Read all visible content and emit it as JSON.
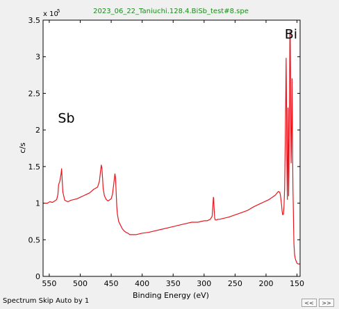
{
  "chart_data": {
    "type": "line",
    "title": "2023_06_22_Taniuchi.128.4.BiSb_test#8.spe",
    "xlabel": "Binding Energy (eV)",
    "ylabel": "c/s",
    "y_multiplier_base": "x 10",
    "y_multiplier_exp": "5",
    "xlim": [
      560,
      145
    ],
    "ylim": [
      0,
      3.5
    ],
    "x_reversed": true,
    "x_ticks": [
      550,
      500,
      450,
      400,
      350,
      300,
      250,
      200,
      150
    ],
    "y_ticks": [
      0,
      0.5,
      1,
      1.5,
      2,
      2.5,
      3,
      3.5
    ],
    "y_tick_labels": [
      "0",
      "0.5",
      "1",
      "1.5",
      "2",
      "2.5",
      "3",
      "3.5"
    ],
    "series": [
      {
        "color": "#e8141c",
        "x": [
          557,
          553,
          549,
          545,
          541,
          538,
          536,
          535,
          533,
          531,
          530,
          529,
          528,
          525,
          520,
          515,
          510,
          505,
          500,
          495,
          490,
          485,
          478,
          472,
          469,
          467,
          466,
          465,
          464,
          463,
          461,
          458,
          455,
          450,
          448,
          446,
          444,
          443,
          442,
          441,
          440,
          438,
          435,
          432,
          429,
          426,
          423,
          420,
          415,
          410,
          400,
          390,
          380,
          370,
          360,
          350,
          340,
          330,
          320,
          310,
          300,
          295,
          290,
          287,
          286,
          285,
          284.5,
          284,
          283,
          282,
          281,
          280,
          278,
          275,
          270,
          260,
          250,
          240,
          230,
          220,
          210,
          200,
          195,
          190,
          185,
          182,
          180,
          178,
          177,
          176,
          175,
          174,
          173,
          172,
          171,
          170,
          169,
          168,
          167.5,
          167,
          166.5,
          166,
          165.5,
          165,
          164.5,
          164,
          163.5,
          163,
          162.5,
          162,
          161.5,
          161,
          160.5,
          160,
          159.5,
          159,
          158.5,
          158,
          157.5,
          157,
          156.5,
          156,
          155.5,
          155,
          154,
          153,
          152,
          151,
          150,
          148,
          146,
          145
        ],
        "y": [
          1.0,
          1.0,
          1.02,
          1.01,
          1.03,
          1.05,
          1.12,
          1.25,
          1.3,
          1.4,
          1.47,
          1.3,
          1.15,
          1.04,
          1.02,
          1.04,
          1.05,
          1.06,
          1.08,
          1.1,
          1.12,
          1.14,
          1.19,
          1.22,
          1.3,
          1.45,
          1.52,
          1.48,
          1.35,
          1.2,
          1.1,
          1.05,
          1.03,
          1.06,
          1.12,
          1.25,
          1.4,
          1.35,
          1.15,
          0.95,
          0.85,
          0.75,
          0.7,
          0.65,
          0.62,
          0.6,
          0.59,
          0.57,
          0.57,
          0.57,
          0.59,
          0.6,
          0.62,
          0.64,
          0.66,
          0.68,
          0.7,
          0.72,
          0.74,
          0.74,
          0.76,
          0.76,
          0.78,
          0.82,
          0.95,
          1.08,
          1.07,
          0.95,
          0.8,
          0.77,
          0.77,
          0.77,
          0.78,
          0.78,
          0.79,
          0.81,
          0.84,
          0.87,
          0.9,
          0.95,
          0.99,
          1.03,
          1.05,
          1.08,
          1.11,
          1.14,
          1.16,
          1.15,
          1.12,
          1.05,
          0.98,
          0.89,
          0.84,
          0.85,
          0.95,
          1.2,
          1.8,
          2.6,
          2.98,
          2.4,
          1.7,
          1.3,
          1.05,
          1.7,
          2.3,
          1.7,
          1.1,
          1.45,
          2.0,
          2.5,
          3.3,
          3.35,
          2.8,
          2.0,
          1.55,
          1.75,
          2.2,
          2.7,
          2.2,
          1.6,
          1.2,
          0.95,
          0.7,
          0.45,
          0.3,
          0.25,
          0.22,
          0.2,
          0.18,
          0.17,
          0.17,
          0.17
        ]
      }
    ],
    "annotations": [
      {
        "text": "Sb",
        "x": 536,
        "y": 2.1
      },
      {
        "text": "Bi",
        "x": 170,
        "y": 3.25
      }
    ]
  },
  "status_text": "Spectrum Skip Auto by 1",
  "buttons": {
    "prev": "<<",
    "next": ">>"
  }
}
